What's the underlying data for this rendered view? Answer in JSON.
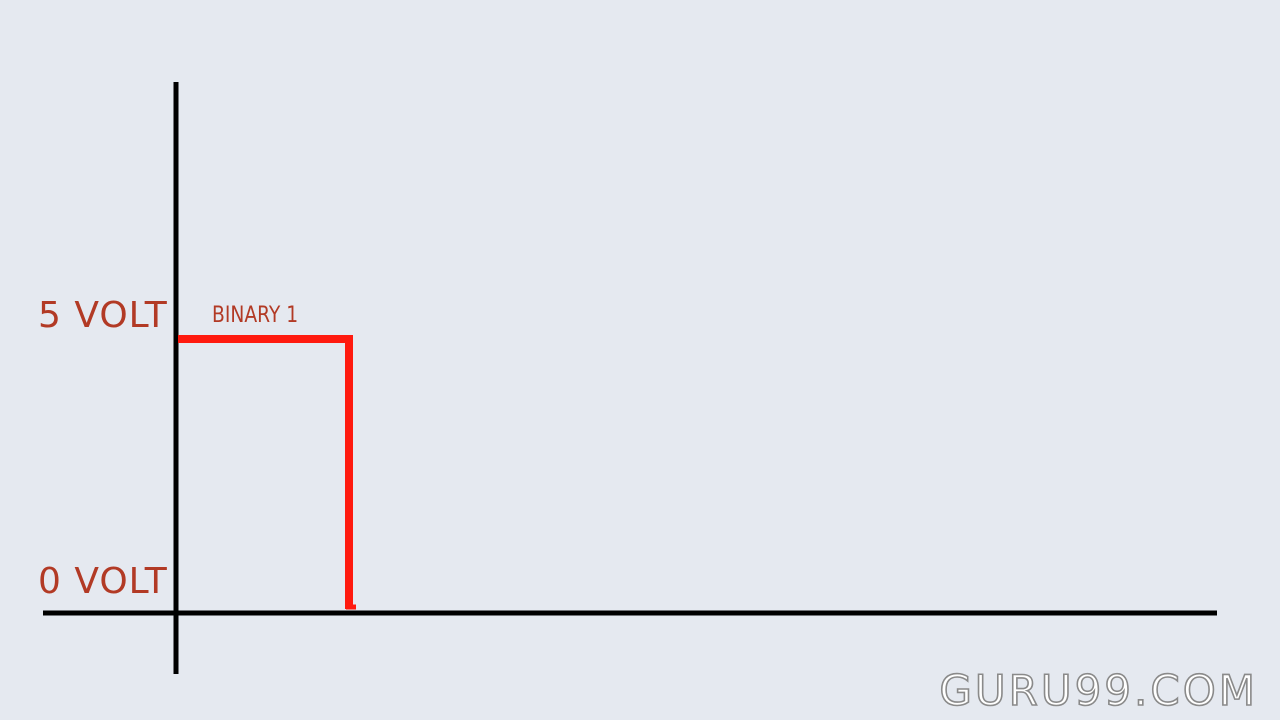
{
  "diagram": {
    "y_high_label": "5 VOLT",
    "y_low_label": "0 VOLT",
    "signal_label": "BINARY 1",
    "signal_color": "#ff1a0f",
    "axis_color": "#000000",
    "label_color": "#b23a25",
    "background_color": "#e5e9f0"
  },
  "watermark": {
    "text": "GURU99.COM"
  }
}
